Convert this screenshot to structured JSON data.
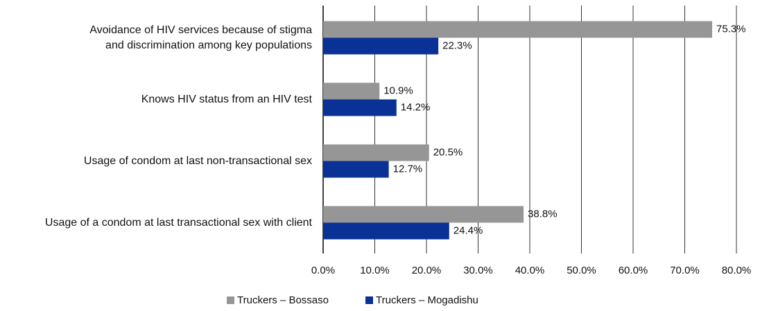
{
  "chart_data": {
    "type": "bar",
    "orientation": "horizontal",
    "categories": [
      "Avoidance of HIV services because of stigma\nand discrimination among key populations",
      "Knows HIV status from an HIV test",
      "Usage of condom at last non-transactional sex",
      "Usage of a condom at last transactional sex with client"
    ],
    "series": [
      {
        "name": "Truckers – Bossaso",
        "color": "#969696",
        "values": [
          75.3,
          10.9,
          20.5,
          38.8
        ],
        "value_labels": [
          "75.3%",
          "10.9%",
          "20.5%",
          "38.8%"
        ]
      },
      {
        "name": "Truckers – Mogadishu",
        "color": "#0a3296",
        "values": [
          22.3,
          14.2,
          12.7,
          24.4
        ],
        "value_labels": [
          "22.3%",
          "14.2%",
          "12.7%",
          "24.4%"
        ]
      }
    ],
    "xlim": [
      0,
      80
    ],
    "xticks": [
      {
        "value": 0,
        "label": "0.0%"
      },
      {
        "value": 10,
        "label": "10.0%"
      },
      {
        "value": 20,
        "label": "20.0%"
      },
      {
        "value": 30,
        "label": "30.0%"
      },
      {
        "value": 40,
        "label": "40.0%"
      },
      {
        "value": 50,
        "label": "50.0%"
      },
      {
        "value": 60,
        "label": "60.0%"
      },
      {
        "value": 70,
        "label": "70.0%"
      },
      {
        "value": 80,
        "label": "80.0%"
      }
    ],
    "grid": true,
    "legend": "bottom"
  }
}
